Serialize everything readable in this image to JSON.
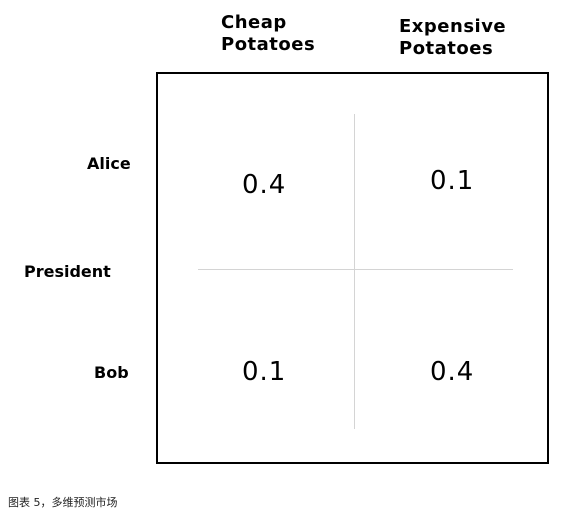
{
  "columns": {
    "cheap_line1": "Cheap",
    "cheap_line2": "Potatoes",
    "expensive_line1": "Expensive",
    "expensive_line2": "Potatoes"
  },
  "rows": {
    "alice": "Alice",
    "president": "President",
    "bob": "Bob"
  },
  "cells": {
    "alice_cheap": "0.4",
    "alice_expensive": "0.1",
    "bob_cheap": "0.1",
    "bob_expensive": "0.4"
  },
  "caption": "图表 5，多维预测市场"
}
